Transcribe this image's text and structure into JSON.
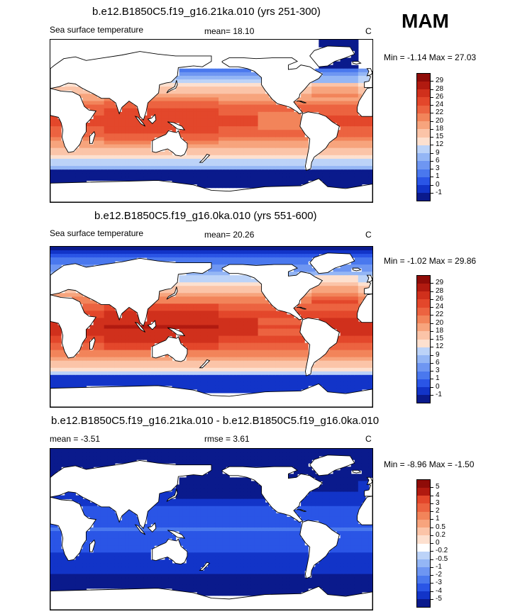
{
  "season_label": "MAM",
  "panels": [
    {
      "title": "b.e12.B1850C5.f19_g16.21ka.010 (yrs 251-300)",
      "left_label": "Sea surface temperature",
      "mean_text": "mean=  18.10",
      "rmse_text": "",
      "unit": "C",
      "minmax_text": "Min =  -1.14 Max =  27.03",
      "scale": "abs21",
      "colorbar": {
        "colors": [
          "#0a1a8c",
          "#1234c8",
          "#2a55e6",
          "#4a78ee",
          "#6e96f2",
          "#94b6f5",
          "#bcd3f8",
          "#fde0cf",
          "#fbc4a8",
          "#f7a47d",
          "#f2845a",
          "#ec6340",
          "#e3472b",
          "#d0301c",
          "#b11a10",
          "#8f0c08"
        ],
        "labels": [
          "-1",
          "0",
          "1",
          "3",
          "6",
          "9",
          "12",
          "15",
          "18",
          "20",
          "22",
          "24",
          "26",
          "28",
          "29"
        ]
      }
    },
    {
      "title": "b.e12.B1850C5.f19_g16.0ka.010 (yrs 551-600)",
      "left_label": "Sea surface temperature",
      "mean_text": "mean=  20.26",
      "rmse_text": "",
      "unit": "C",
      "minmax_text": "Min =  -1.02 Max =  29.86",
      "scale": "abs0",
      "colorbar": {
        "colors": [
          "#0a1a8c",
          "#1234c8",
          "#2a55e6",
          "#4a78ee",
          "#6e96f2",
          "#94b6f5",
          "#bcd3f8",
          "#fde0cf",
          "#fbc4a8",
          "#f7a47d",
          "#f2845a",
          "#ec6340",
          "#e3472b",
          "#d0301c",
          "#b11a10",
          "#8f0c08"
        ],
        "labels": [
          "-1",
          "0",
          "1",
          "3",
          "6",
          "9",
          "12",
          "15",
          "18",
          "20",
          "22",
          "24",
          "26",
          "28",
          "29"
        ]
      }
    },
    {
      "title": "b.e12.B1850C5.f19_g16.21ka.010 - b.e12.B1850C5.f19_g16.0ka.010",
      "left_label": "mean =  -3.51",
      "mean_text": "",
      "rmse_text": "rmse =   3.61",
      "unit": "C",
      "minmax_text": "Min =  -8.96 Max =  -1.50",
      "scale": "diff",
      "colorbar": {
        "colors": [
          "#0a1a8c",
          "#1234c8",
          "#2a55e6",
          "#4a78ee",
          "#6e96f2",
          "#94b6f5",
          "#bcd3f8",
          "#ffffff",
          "#fde0cf",
          "#fbc4a8",
          "#f7a47d",
          "#f2845a",
          "#ec6340",
          "#e3472b",
          "#b11a10",
          "#8f0c08"
        ],
        "labels": [
          "-5",
          "-4",
          "-3",
          "-2",
          "-1",
          "-0.5",
          "-0.2",
          "0",
          "0.2",
          "0.5",
          "1",
          "2",
          "3",
          "4",
          "5"
        ]
      }
    }
  ]
}
